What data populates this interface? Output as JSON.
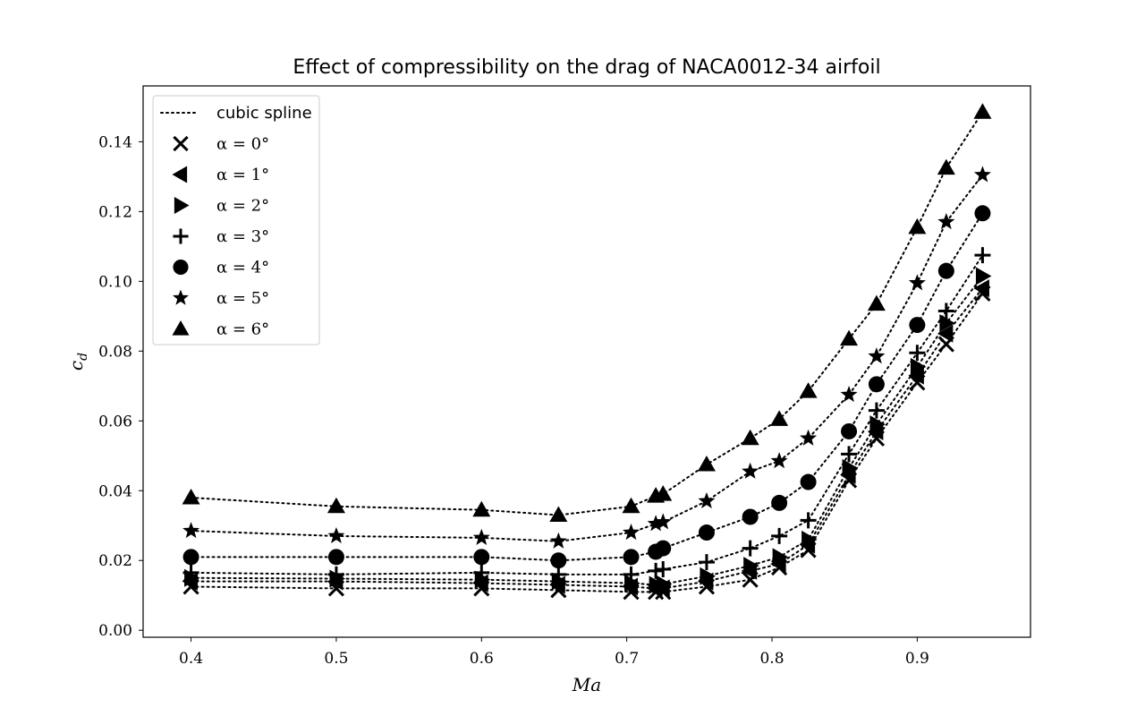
{
  "chart_data": {
    "type": "line",
    "title": "Effect of compressibility on the drag of NACA0012-34 airfoil",
    "xlabel": "Ma",
    "ylabel": "c_d",
    "xlim": [
      0.367,
      0.978
    ],
    "ylim": [
      -0.002,
      0.156
    ],
    "xticks": [
      0.4,
      0.5,
      0.6,
      0.7,
      0.8,
      0.9
    ],
    "xtick_labels": [
      "0.4",
      "0.5",
      "0.6",
      "0.7",
      "0.8",
      "0.9"
    ],
    "yticks": [
      0.0,
      0.02,
      0.04,
      0.06,
      0.08,
      0.1,
      0.12,
      0.14
    ],
    "ytick_labels": [
      "0.00",
      "0.02",
      "0.04",
      "0.06",
      "0.08",
      "0.10",
      "0.12",
      "0.14"
    ],
    "grid": false,
    "legend_position": "top-left",
    "color": "#000000",
    "line_style": "dotted",
    "legend": [
      {
        "label": "cubic spline",
        "marker": "line"
      },
      {
        "label": "α = 0°",
        "marker": "x"
      },
      {
        "label": "α = 1°",
        "marker": "triangle-left"
      },
      {
        "label": "α = 2°",
        "marker": "triangle-right"
      },
      {
        "label": "α = 3°",
        "marker": "plus"
      },
      {
        "label": "α = 4°",
        "marker": "circle"
      },
      {
        "label": "α = 5°",
        "marker": "star"
      },
      {
        "label": "α = 6°",
        "marker": "triangle-up"
      }
    ],
    "series": [
      {
        "name": "α = 0°",
        "marker": "x",
        "x": [
          0.4,
          0.5,
          0.6,
          0.653,
          0.703,
          0.72,
          0.725,
          0.755,
          0.785,
          0.805,
          0.825,
          0.853,
          0.872,
          0.9,
          0.92,
          0.945
        ],
        "y": [
          0.0125,
          0.012,
          0.012,
          0.0115,
          0.011,
          0.011,
          0.011,
          0.0125,
          0.0145,
          0.018,
          0.023,
          0.043,
          0.055,
          0.071,
          0.082,
          0.0965
        ]
      },
      {
        "name": "α = 1°",
        "marker": "triangle-left",
        "x": [
          0.4,
          0.5,
          0.6,
          0.653,
          0.703,
          0.72,
          0.725,
          0.755,
          0.785,
          0.805,
          0.825,
          0.853,
          0.872,
          0.9,
          0.92,
          0.945
        ],
        "y": [
          0.014,
          0.014,
          0.0135,
          0.013,
          0.0125,
          0.012,
          0.012,
          0.014,
          0.017,
          0.019,
          0.0245,
          0.0445,
          0.057,
          0.073,
          0.085,
          0.098
        ]
      },
      {
        "name": "α = 2°",
        "marker": "triangle-right",
        "x": [
          0.4,
          0.5,
          0.6,
          0.653,
          0.703,
          0.72,
          0.725,
          0.755,
          0.785,
          0.805,
          0.825,
          0.853,
          0.872,
          0.9,
          0.92,
          0.945
        ],
        "y": [
          0.015,
          0.0148,
          0.0145,
          0.014,
          0.0135,
          0.013,
          0.0132,
          0.0155,
          0.0185,
          0.021,
          0.026,
          0.0465,
          0.059,
          0.0755,
          0.088,
          0.1015
        ]
      },
      {
        "name": "α = 3°",
        "marker": "plus",
        "x": [
          0.4,
          0.5,
          0.6,
          0.653,
          0.703,
          0.72,
          0.725,
          0.755,
          0.785,
          0.805,
          0.825,
          0.853,
          0.872,
          0.9,
          0.92,
          0.945
        ],
        "y": [
          0.0165,
          0.016,
          0.0165,
          0.016,
          0.016,
          0.017,
          0.0175,
          0.0195,
          0.0235,
          0.027,
          0.0315,
          0.0505,
          0.063,
          0.0795,
          0.0915,
          0.1075
        ]
      },
      {
        "name": "α = 4°",
        "marker": "circle",
        "x": [
          0.4,
          0.5,
          0.6,
          0.653,
          0.703,
          0.72,
          0.725,
          0.755,
          0.785,
          0.805,
          0.825,
          0.853,
          0.872,
          0.9,
          0.92,
          0.945
        ],
        "y": [
          0.021,
          0.021,
          0.021,
          0.02,
          0.021,
          0.0225,
          0.0235,
          0.028,
          0.0325,
          0.0365,
          0.0425,
          0.057,
          0.0705,
          0.0875,
          0.103,
          0.1195
        ]
      },
      {
        "name": "α = 5°",
        "marker": "star",
        "x": [
          0.4,
          0.5,
          0.6,
          0.653,
          0.703,
          0.72,
          0.725,
          0.755,
          0.785,
          0.805,
          0.825,
          0.853,
          0.872,
          0.9,
          0.92,
          0.945
        ],
        "y": [
          0.0285,
          0.027,
          0.0265,
          0.0255,
          0.028,
          0.0305,
          0.031,
          0.037,
          0.0455,
          0.0485,
          0.055,
          0.0675,
          0.0785,
          0.0995,
          0.117,
          0.1305
        ]
      },
      {
        "name": "α = 6°",
        "marker": "triangle-up",
        "x": [
          0.4,
          0.5,
          0.6,
          0.653,
          0.703,
          0.72,
          0.725,
          0.755,
          0.785,
          0.805,
          0.825,
          0.853,
          0.872,
          0.9,
          0.92,
          0.945
        ],
        "y": [
          0.038,
          0.0355,
          0.0345,
          0.033,
          0.0355,
          0.0385,
          0.039,
          0.0475,
          0.055,
          0.0605,
          0.0685,
          0.0835,
          0.0935,
          0.1155,
          0.1325,
          0.1485
        ]
      }
    ]
  }
}
